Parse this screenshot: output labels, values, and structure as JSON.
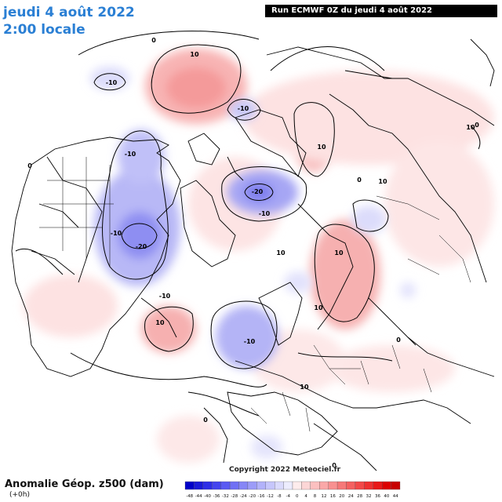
{
  "header": {
    "date_line": "jeudi 4 août 2022",
    "time_line": "2:00 locale",
    "run_label": "Run ECMWF 0Z du jeudi 4 août 2022"
  },
  "footer": {
    "title": "Anomalie Géop. z500 (dam)",
    "subtitle": "(+0h)",
    "copyright": "Copyright 2022 Meteociel.fr"
  },
  "legend": {
    "values": [
      "-48",
      "-44",
      "-40",
      "-36",
      "-32",
      "-28",
      "-24",
      "-20",
      "-16",
      "-12",
      "-8",
      "-4",
      "0",
      "4",
      "8",
      "12",
      "16",
      "20",
      "24",
      "28",
      "32",
      "36",
      "40",
      "44"
    ],
    "colors": [
      "#0000c8",
      "#1a1ad8",
      "#2e2ee6",
      "#4444ee",
      "#5a5af2",
      "#7070f4",
      "#8686f6",
      "#9c9cf8",
      "#b2b2fa",
      "#c6c6fb",
      "#dadafc",
      "#ececfd",
      "#fdecec",
      "#fcd6d6",
      "#fbc0c0",
      "#faa8a8",
      "#f89090",
      "#f67878",
      "#f46060",
      "#f24848",
      "#ee3030",
      "#e81818",
      "#dc0000",
      "#c80000"
    ]
  },
  "map": {
    "anomalies": [
      {
        "kind": "positive",
        "value": 10,
        "label": "10"
      },
      {
        "kind": "negative",
        "value": -10,
        "label": "-10"
      },
      {
        "kind": "negative",
        "value": -20,
        "label": "-20"
      }
    ],
    "contour_labels": [
      "0",
      "-10",
      "10",
      "-10",
      "0",
      "-10",
      "10",
      "-20",
      "-10",
      "-10",
      "-20",
      "10",
      "-10",
      "10",
      "10",
      "-10",
      "10",
      "10",
      "10",
      "0",
      "0",
      "0",
      "0",
      "10",
      "0"
    ]
  }
}
